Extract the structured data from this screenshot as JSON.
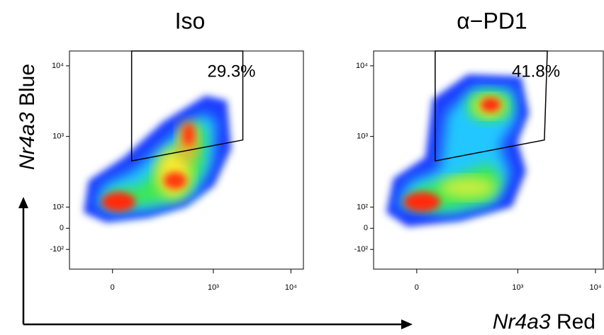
{
  "chart_data": [
    {
      "type": "density",
      "title": "Iso",
      "annotation": "29.3%",
      "scale": "biexponential",
      "gate": {
        "x": [
          82,
          2400,
          2400,
          82
        ],
        "y": [
          16200,
          16200,
          890,
          450
        ]
      },
      "xlim": [
        -180,
        14500
      ],
      "ylim": [
        -190,
        16200
      ],
      "xticks": [
        0,
        {
          "value": 1000,
          "label": "10³"
        },
        {
          "value": 10000,
          "label": "10⁴"
        }
      ],
      "yticks": [
        {
          "value": 10000,
          "label": "10⁴"
        },
        {
          "value": 1000,
          "label": "10³"
        },
        {
          "value": 100,
          "label": "10²"
        },
        0,
        {
          "value": -100,
          "label": "-10²"
        }
      ]
    },
    {
      "type": "density",
      "title": "α−PD1",
      "annotation": "41.8%",
      "scale": "biexponential",
      "gate": {
        "x": [
          79,
          2400,
          2200,
          79
        ],
        "y": [
          16200,
          16200,
          890,
          450
        ]
      },
      "xlim": [
        -180,
        12600
      ],
      "ylim": [
        -190,
        16200
      ],
      "xticks": [
        0,
        {
          "value": 1000,
          "label": "10³"
        },
        {
          "value": 10000,
          "label": "10⁴"
        }
      ],
      "yticks": [
        {
          "value": 10000,
          "label": "10⁴"
        },
        {
          "value": 1000,
          "label": "10³"
        },
        {
          "value": 100,
          "label": "10²"
        },
        0,
        {
          "value": -100,
          "label": "-10²"
        }
      ]
    }
  ],
  "axis_titles": {
    "y": {
      "gene": "Nr4a3",
      "channel": "Blue"
    },
    "x": {
      "gene": "Nr4a3",
      "channel": "Red"
    }
  }
}
